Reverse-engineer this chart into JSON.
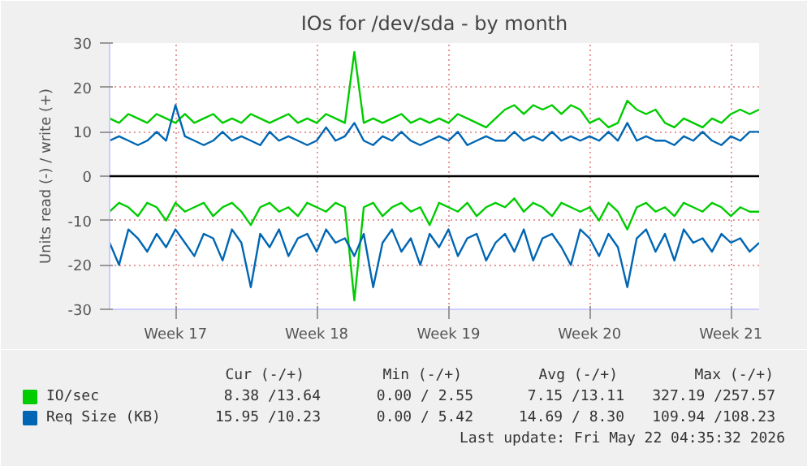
{
  "chart_data": {
    "type": "line",
    "title": "IOs for /dev/sda - by month",
    "ylabel": "Units read (-) / write (+)",
    "categories": [
      null,
      null,
      null,
      null,
      null,
      null,
      null,
      "Week 17",
      null,
      null,
      null,
      null,
      null,
      null,
      null,
      null,
      null,
      null,
      null,
      null,
      null,
      null,
      "Week 18",
      null,
      null,
      null,
      null,
      null,
      null,
      null,
      null,
      null,
      null,
      null,
      null,
      null,
      "Week 19",
      null,
      null,
      null,
      null,
      null,
      null,
      null,
      null,
      null,
      null,
      null,
      null,
      null,
      null,
      "Week 20",
      null,
      null,
      null,
      null,
      null,
      null,
      null,
      null,
      null,
      null,
      null,
      null,
      null,
      null,
      "Week 21",
      null,
      null,
      null
    ],
    "series": [
      {
        "name": "IO/sec",
        "color": "#00cc00",
        "values": [
          13,
          12,
          14,
          13,
          12,
          14,
          13,
          12,
          14,
          12,
          13,
          14,
          12,
          13,
          12,
          14,
          13,
          12,
          13,
          14,
          12,
          13,
          12,
          14,
          13,
          12,
          28,
          12,
          13,
          12,
          13,
          14,
          12,
          13,
          12,
          13,
          12,
          14,
          13,
          12,
          11,
          13,
          15,
          16,
          14,
          16,
          15,
          16,
          14,
          16,
          15,
          12,
          13,
          11,
          12,
          17,
          15,
          14,
          15,
          12,
          11,
          13,
          12,
          11,
          13,
          12,
          14,
          15,
          14,
          15
        ]
      },
      {
        "color": "#00cc00",
        "values": [
          -8,
          -6,
          -7,
          -9,
          -6,
          -7,
          -10,
          -6,
          -8,
          -7,
          -6,
          -9,
          -7,
          -6,
          -8,
          -11,
          -7,
          -6,
          -8,
          -7,
          -9,
          -6,
          -7,
          -8,
          -6,
          -7,
          -28,
          -7,
          -6,
          -9,
          -7,
          -6,
          -8,
          -7,
          -11,
          -6,
          -7,
          -8,
          -6,
          -9,
          -7,
          -6,
          -7,
          -5,
          -8,
          -6,
          -7,
          -9,
          -6,
          -7,
          -8,
          -7,
          -10,
          -6,
          -8,
          -12,
          -7,
          -6,
          -8,
          -7,
          -9,
          -6,
          -7,
          -8,
          -6,
          -7,
          -9,
          -7,
          -8,
          -8
        ]
      },
      {
        "name": "Req Size (KB)",
        "color": "#0066b3",
        "values": [
          8,
          9,
          8,
          7,
          8,
          10,
          8,
          16,
          9,
          8,
          7,
          8,
          10,
          8,
          9,
          8,
          7,
          10,
          8,
          9,
          8,
          7,
          8,
          11,
          8,
          9,
          12,
          8,
          7,
          9,
          8,
          10,
          8,
          7,
          8,
          9,
          8,
          10,
          7,
          8,
          9,
          8,
          8,
          10,
          8,
          9,
          8,
          10,
          8,
          9,
          8,
          9,
          8,
          10,
          8,
          12,
          8,
          9,
          8,
          8,
          7,
          9,
          8,
          10,
          8,
          7,
          9,
          8,
          10,
          10
        ]
      },
      {
        "color": "#0066b3",
        "values": [
          -15,
          -20,
          -12,
          -14,
          -17,
          -13,
          -16,
          -12,
          -15,
          -18,
          -13,
          -14,
          -19,
          -12,
          -15,
          -25,
          -13,
          -16,
          -12,
          -18,
          -14,
          -13,
          -17,
          -12,
          -15,
          -14,
          -18,
          -13,
          -25,
          -15,
          -12,
          -17,
          -14,
          -20,
          -13,
          -16,
          -12,
          -18,
          -14,
          -13,
          -19,
          -15,
          -13,
          -17,
          -12,
          -19,
          -14,
          -13,
          -16,
          -20,
          -12,
          -14,
          -18,
          -13,
          -16,
          -25,
          -14,
          -12,
          -17,
          -13,
          -19,
          -12,
          -15,
          -14,
          -17,
          -13,
          -15,
          -14,
          -17,
          -15
        ]
      }
    ],
    "ylim": [
      -30,
      30
    ],
    "yticks": [
      -30,
      -20,
      -10,
      0,
      10,
      20,
      30
    ],
    "ref_lines": [
      {
        "axis": "y",
        "value": 0,
        "color": "#000000"
      }
    ],
    "grid": true,
    "legend": "bottom",
    "annotations": [
      "Cur (-/+)",
      "Min (-/+)",
      "Avg (-/+)",
      "Max (-/+)",
      "8.38 /13.64",
      "0.00 / 2.55",
      "7.15 /13.11",
      "327.19 /257.57",
      "15.95 /10.23",
      "0.00 / 5.42",
      "14.69 / 8.30",
      "109.94 /108.23",
      "Last update: Fri May 22 04:35:32 2026"
    ]
  }
}
